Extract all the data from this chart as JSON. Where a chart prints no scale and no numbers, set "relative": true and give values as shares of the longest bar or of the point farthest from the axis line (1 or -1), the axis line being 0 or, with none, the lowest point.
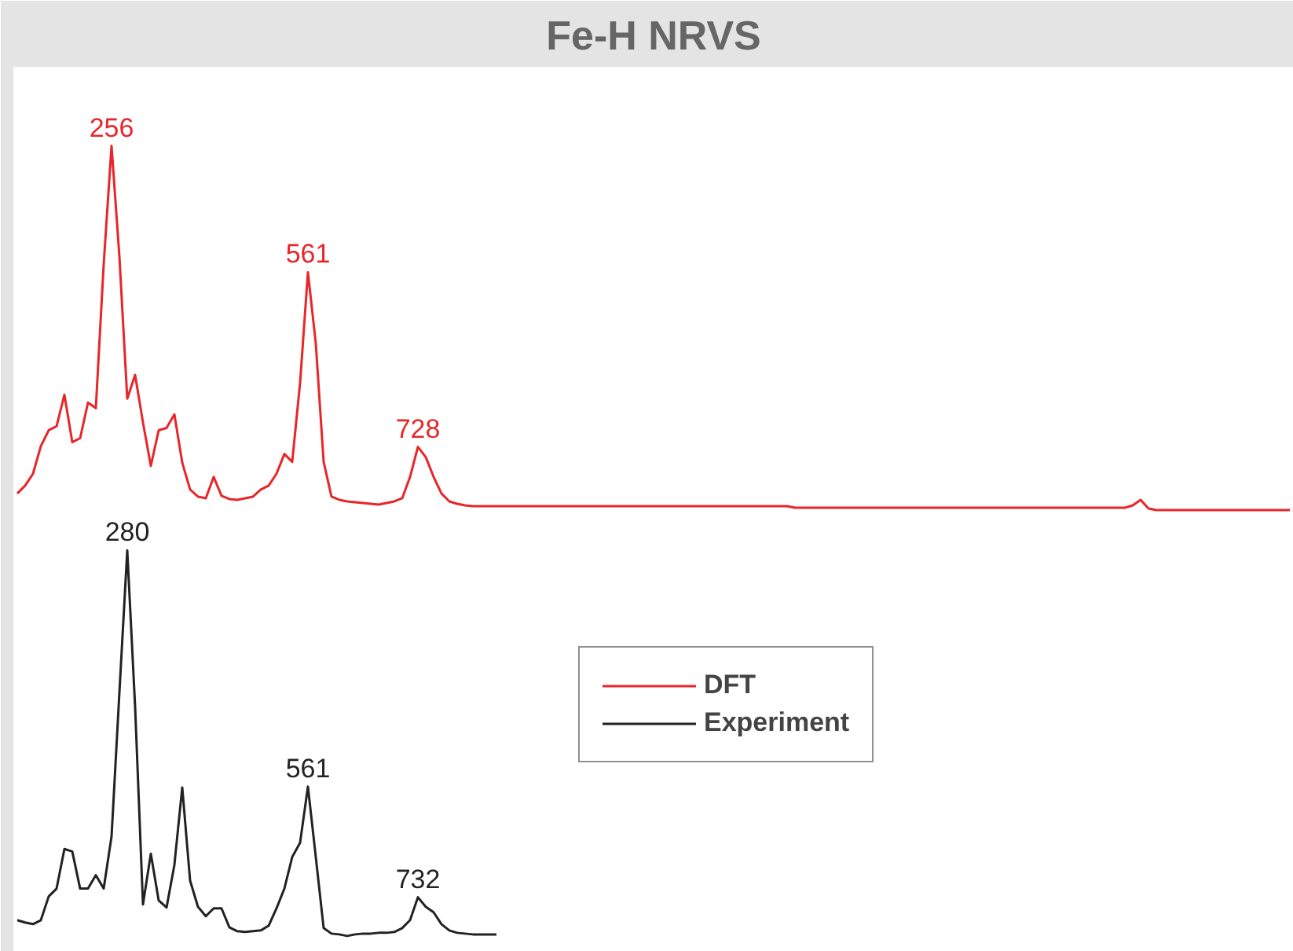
{
  "chart_data": {
    "type": "line",
    "title": "Fe-H NRVS",
    "relative": true,
    "legend": "bottom",
    "line_style": "solid",
    "marker": "none",
    "categories": [
      null,
      null,
      null,
      null,
      null,
      null,
      null,
      null,
      null,
      null,
      null,
      null,
      null,
      null,
      null,
      null,
      null,
      null,
      null,
      null,
      null,
      null,
      null,
      null,
      null,
      null,
      null,
      null,
      null,
      null,
      null,
      null,
      null,
      null,
      null,
      null,
      null,
      null,
      null,
      null,
      null,
      null,
      null,
      null,
      null,
      null,
      null,
      null,
      null,
      null,
      null,
      null,
      null,
      null,
      null,
      null,
      null,
      null,
      null,
      null,
      null,
      null,
      null,
      null,
      null,
      null,
      null,
      null,
      null,
      null,
      null,
      null,
      null,
      null,
      null,
      null,
      null,
      null,
      null,
      null,
      null,
      null,
      null,
      null,
      null,
      null,
      null,
      null,
      null,
      null,
      null,
      null,
      null,
      null,
      null,
      null,
      null,
      null,
      null,
      null,
      null,
      null,
      null,
      null,
      null,
      null,
      null,
      null,
      null,
      null,
      null,
      null,
      null,
      null,
      null,
      null,
      null,
      null,
      null,
      null,
      null,
      null,
      null,
      null,
      null,
      null,
      null,
      null,
      null,
      null,
      null,
      null,
      null,
      null,
      null,
      null,
      null,
      null,
      null,
      null,
      null,
      null,
      null,
      null,
      null,
      null,
      null,
      null,
      null,
      null,
      null,
      null,
      null,
      null,
      null,
      null,
      null,
      null,
      null,
      null,
      null,
      null,
      null
    ],
    "series": [
      {
        "name": "DFT",
        "color": "#e8262a",
        "values": [
          0.56,
          0.57,
          0.585,
          0.62,
          0.64,
          0.645,
          0.685,
          0.625,
          0.63,
          0.675,
          0.668,
          0.85,
          1.0,
          0.86,
          0.68,
          0.71,
          0.65,
          0.595,
          0.64,
          0.643,
          0.66,
          0.599,
          0.565,
          0.556,
          0.554,
          0.581,
          0.557,
          0.553,
          0.552,
          0.554,
          0.556,
          0.565,
          0.57,
          0.585,
          0.61,
          0.6,
          0.7,
          0.84,
          0.75,
          0.6,
          0.556,
          0.552,
          0.55,
          0.549,
          0.548,
          0.547,
          0.546,
          0.548,
          0.55,
          0.554,
          0.581,
          0.619,
          0.606,
          0.581,
          0.56,
          0.55,
          0.547,
          0.545,
          0.544,
          0.544,
          0.544,
          0.544,
          0.544,
          0.544,
          0.544,
          0.544,
          0.544,
          0.544,
          0.544,
          0.544,
          0.544,
          0.544,
          0.544,
          0.544,
          0.544,
          0.544,
          0.544,
          0.544,
          0.544,
          0.544,
          0.544,
          0.544,
          0.544,
          0.544,
          0.544,
          0.544,
          0.544,
          0.544,
          0.544,
          0.544,
          0.544,
          0.544,
          0.544,
          0.544,
          0.544,
          0.544,
          0.544,
          0.544,
          0.544,
          0.542,
          0.542,
          0.542,
          0.542,
          0.542,
          0.542,
          0.542,
          0.542,
          0.542,
          0.542,
          0.542,
          0.542,
          0.542,
          0.542,
          0.542,
          0.542,
          0.542,
          0.542,
          0.542,
          0.542,
          0.542,
          0.542,
          0.542,
          0.542,
          0.542,
          0.542,
          0.542,
          0.542,
          0.542,
          0.542,
          0.542,
          0.542,
          0.542,
          0.542,
          0.542,
          0.542,
          0.542,
          0.542,
          0.542,
          0.542,
          0.542,
          0.542,
          0.542,
          0.545,
          0.552,
          0.541,
          0.539,
          0.539,
          0.539,
          0.539,
          0.539,
          0.539,
          0.539,
          0.539,
          0.539,
          0.539,
          0.539,
          0.539,
          0.539,
          0.539,
          0.539,
          0.539,
          0.539,
          0.539
        ]
      },
      {
        "name": "Experiment",
        "color": "#222222",
        "values": [
          0.02,
          0.017,
          0.015,
          0.02,
          0.05,
          0.06,
          0.11,
          0.107,
          0.06,
          0.06,
          0.077,
          0.06,
          0.126,
          0.308,
          0.488,
          0.29,
          0.04,
          0.104,
          0.045,
          0.036,
          0.09,
          0.188,
          0.07,
          0.037,
          0.025,
          0.035,
          0.035,
          0.011,
          0.006,
          0.005,
          0.006,
          0.007,
          0.013,
          0.035,
          0.06,
          0.1,
          0.118,
          0.189,
          0.1,
          0.01,
          0.003,
          0.002,
          0.0,
          0.002,
          0.003,
          0.003,
          0.004,
          0.004,
          0.005,
          0.01,
          0.02,
          0.049,
          0.037,
          0.03,
          0.015,
          0.007,
          0.004,
          0.003,
          0.002,
          0.002,
          0.002,
          0.002,
          null,
          null,
          null,
          null,
          null,
          null,
          null,
          null,
          null,
          null,
          null,
          null,
          null,
          null,
          null,
          null,
          null,
          null,
          null,
          null,
          null,
          null,
          null,
          null,
          null,
          null,
          null,
          null,
          null,
          null,
          null,
          null,
          null,
          null,
          null,
          null,
          null,
          null,
          null,
          null,
          null,
          null,
          null,
          null,
          null,
          null,
          null,
          null,
          null,
          null,
          null,
          null,
          null,
          null,
          null,
          null,
          null,
          null,
          null,
          null,
          null,
          null,
          null,
          null,
          null,
          null,
          null,
          null,
          null,
          null,
          null,
          null,
          null,
          null,
          null,
          null,
          null,
          null,
          null,
          null,
          null,
          null,
          null,
          null,
          null,
          null,
          null,
          null,
          null,
          null,
          null,
          null,
          null,
          null,
          null,
          null,
          null,
          null,
          null,
          null,
          null
        ]
      }
    ],
    "annotations": [
      {
        "text": "256",
        "y": 1.0
      },
      {
        "text": "561",
        "y": 0.84
      },
      {
        "text": "728",
        "y": 0.619
      },
      {
        "text": "280",
        "y": 0.488
      },
      {
        "text": "561",
        "y": 0.189
      },
      {
        "text": "732",
        "y": 0.049
      }
    ]
  }
}
